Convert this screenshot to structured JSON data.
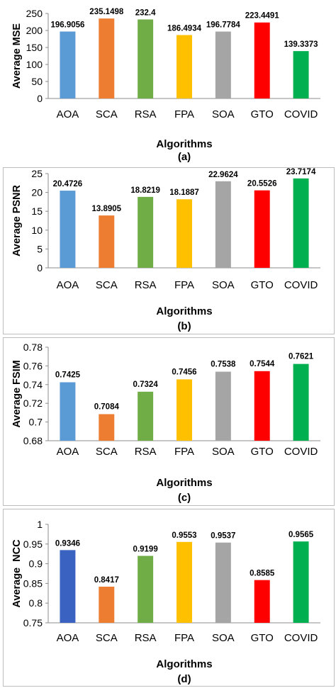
{
  "chart_data": [
    {
      "type": "bar",
      "categories": [
        "AOA",
        "SCA",
        "RSA",
        "FPA",
        "SOA",
        "GTO",
        "COVID"
      ],
      "values": [
        196.9056,
        235.1498,
        232.4,
        186.4934,
        196.7784,
        223.4491,
        139.3373
      ],
      "value_labels": [
        "196.9056",
        "235.1498",
        "232.4",
        "186.4934",
        "196.7784",
        "223.4491",
        "139.3373"
      ],
      "ylabel": "Average MSE",
      "xlabel": "Algorithms",
      "caption": "(a)",
      "ylim": [
        0,
        250
      ],
      "yticks": [
        0,
        50,
        100,
        150,
        200,
        250
      ],
      "ytick_labels": [
        "0",
        "50",
        "100",
        "150",
        "200",
        "250"
      ],
      "grid": false
    },
    {
      "type": "bar",
      "categories": [
        "AOA",
        "SCA",
        "RSA",
        "FPA",
        "SOA",
        "GTO",
        "COVID"
      ],
      "values": [
        20.4726,
        13.8905,
        18.8219,
        18.1887,
        22.9624,
        20.5526,
        23.7174
      ],
      "value_labels": [
        "20.4726",
        "13.8905",
        "18.8219",
        "18.1887",
        "22.9624",
        "20.5526",
        "23.7174"
      ],
      "ylabel": "Average PSNR",
      "xlabel": "Algorithms",
      "caption": "(b)",
      "ylim": [
        0,
        25
      ],
      "yticks": [
        0,
        5,
        10,
        15,
        20,
        25
      ],
      "ytick_labels": [
        "0",
        "5",
        "10",
        "15",
        "20",
        "25"
      ],
      "grid": false
    },
    {
      "type": "bar",
      "categories": [
        "AOA",
        "SCA",
        "RSA",
        "FPA",
        "SOA",
        "GTO",
        "COVID"
      ],
      "values": [
        0.7425,
        0.7084,
        0.7324,
        0.7456,
        0.7538,
        0.7544,
        0.7621
      ],
      "value_labels": [
        "0.7425",
        "0.7084",
        "0.7324",
        "0.7456",
        "0.7538",
        "0.7544",
        "0.7621"
      ],
      "ylabel": "Average FSIM",
      "xlabel": "Algorithms",
      "caption": "(c)",
      "ylim": [
        0.68,
        0.78
      ],
      "yticks": [
        0.68,
        0.7,
        0.72,
        0.74,
        0.76,
        0.78
      ],
      "ytick_labels": [
        "0.68",
        "0.7",
        "0.72",
        "0.74",
        "0.76",
        "0.78"
      ],
      "grid": false
    },
    {
      "type": "bar",
      "categories": [
        "AOA",
        "SCA",
        "RSA",
        "FPA",
        "SOA",
        "GTO",
        "COVID"
      ],
      "values": [
        0.9346,
        0.8417,
        0.9199,
        0.9553,
        0.9537,
        0.8585,
        0.9565
      ],
      "value_labels": [
        "0.9346",
        "0.8417",
        "0.9199",
        "0.9553",
        "0.9537",
        "0.8585",
        "0.9565"
      ],
      "ylabel": "Average  NCC",
      "xlabel": "Algorithms",
      "caption": "(d)",
      "ylim": [
        0.75,
        1
      ],
      "yticks": [
        0.75,
        0.8,
        0.85,
        0.9,
        0.95,
        1
      ],
      "ytick_labels": [
        "0.75",
        "0.8",
        "0.85",
        "0.9",
        "0.95",
        "1"
      ],
      "grid": false
    }
  ],
  "colors": {
    "bars": [
      "#5b9bd5",
      "#ed7d31",
      "#70ad47",
      "#ffc000",
      "#a5a5a5",
      "#ff0000",
      "#00b050"
    ],
    "panel_d_first_bar": "#3a62c0"
  }
}
